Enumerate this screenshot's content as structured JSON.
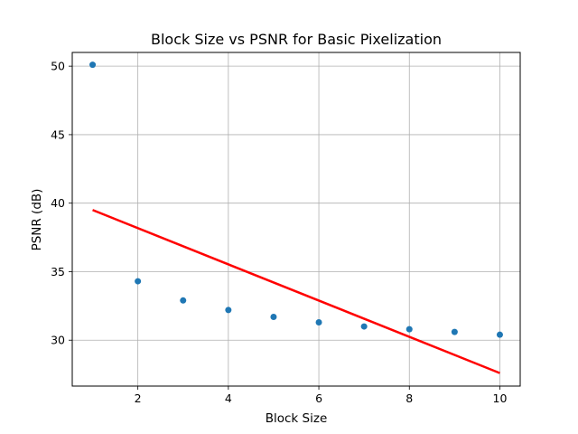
{
  "chart_data": {
    "type": "scatter",
    "title": "Block Size vs PSNR for Basic Pixelization",
    "xlabel": "Block Size",
    "ylabel": "PSNR (dB)",
    "xlim": [
      0.55,
      10.45
    ],
    "ylim": [
      26.65,
      51.0
    ],
    "xticks": [
      2,
      4,
      6,
      8,
      10
    ],
    "yticks": [
      30,
      35,
      40,
      45,
      50
    ],
    "grid": true,
    "points": {
      "color": "#1f77b4",
      "x": [
        1,
        2,
        3,
        4,
        5,
        6,
        7,
        8,
        9,
        10
      ],
      "y": [
        50.1,
        34.3,
        32.9,
        32.2,
        31.7,
        31.3,
        31.0,
        30.8,
        30.6,
        30.4
      ]
    },
    "trend_line": {
      "color": "#ff0000",
      "x": [
        1,
        10
      ],
      "y": [
        39.5,
        27.6
      ]
    }
  }
}
